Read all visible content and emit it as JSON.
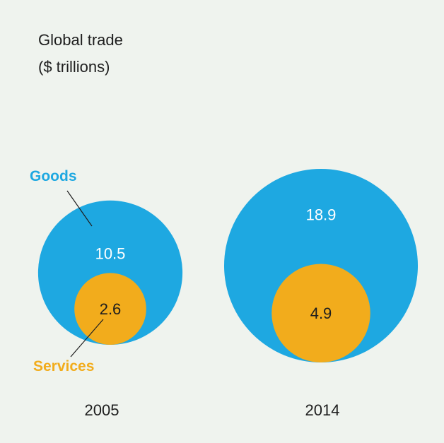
{
  "chart_data": {
    "type": "nested-bubble",
    "title": "Global trade",
    "subtitle": "($ trillions)",
    "categories": [
      "2005",
      "2014"
    ],
    "series": [
      {
        "name": "Goods",
        "values": [
          10.5,
          18.9
        ],
        "color": "#1ea8e1"
      },
      {
        "name": "Services",
        "values": [
          2.6,
          4.9
        ],
        "color": "#f2ac1c"
      }
    ]
  },
  "colors": {
    "background": "#eff3ee",
    "goods": "#1ea8e1",
    "services": "#f2ac1c",
    "text": "#1e1e1e",
    "goods_value_text": "#ffffff",
    "services_value_text": "#1e1e1e"
  }
}
